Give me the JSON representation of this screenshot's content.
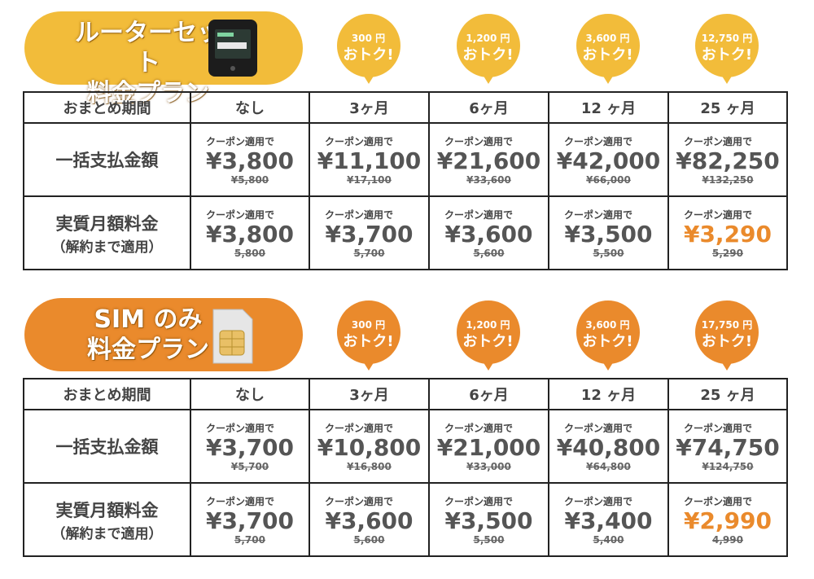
{
  "sections": [
    {
      "title": [
        "ルーターセット",
        "料金プラン"
      ],
      "color": "#f2bc3a",
      "badges": [
        {
          "amount": "300 円",
          "label": "おトク!"
        },
        {
          "amount": "1,200 円",
          "label": "おトク!"
        },
        {
          "amount": "3,600 円",
          "label": "おトク!"
        },
        {
          "amount": "12,750 円",
          "label": "おトク!"
        }
      ],
      "table": {
        "header": [
          "おまとめ期間",
          "なし",
          "3ヶ月",
          "6ヶ月",
          "12 ヶ月",
          "25 ヶ月"
        ],
        "rows": [
          {
            "label": "一括支払金額",
            "cells": [
              {
                "note": "クーポン適用で",
                "price": "¥3,800",
                "original": "¥5,800"
              },
              {
                "note": "クーポン適用で",
                "price": "¥11,100",
                "original": "¥17,100"
              },
              {
                "note": "クーポン適用で",
                "price": "¥21,600",
                "original": "¥33,600"
              },
              {
                "note": "クーポン適用で",
                "price": "¥42,000",
                "original": "¥66,000"
              },
              {
                "note": "クーポン適用で",
                "price": "¥82,250",
                "original": "¥132,250"
              }
            ]
          },
          {
            "label": "実質月額料金",
            "sublabel": "（解約まで適用）",
            "cells": [
              {
                "note": "クーポン適用で",
                "price": "¥3,800",
                "original": "5,800"
              },
              {
                "note": "クーポン適用で",
                "price": "¥3,700",
                "original": "5,700"
              },
              {
                "note": "クーポン適用で",
                "price": "¥3,600",
                "original": "5,600"
              },
              {
                "note": "クーポン適用で",
                "price": "¥3,500",
                "original": "5,500"
              },
              {
                "note": "クーポン適用で",
                "price": "¥3,290",
                "original": "5,290",
                "highlight": true
              }
            ]
          }
        ]
      }
    },
    {
      "title": [
        "SIM のみ",
        "料金プラン"
      ],
      "color": "#ea8a2c",
      "badges": [
        {
          "amount": "300 円",
          "label": "おトク!"
        },
        {
          "amount": "1,200 円",
          "label": "おトク!"
        },
        {
          "amount": "3,600 円",
          "label": "おトク!"
        },
        {
          "amount": "17,750 円",
          "label": "おトク!"
        }
      ],
      "table": {
        "header": [
          "おまとめ期間",
          "なし",
          "3ヶ月",
          "6ヶ月",
          "12 ヶ月",
          "25 ヶ月"
        ],
        "rows": [
          {
            "label": "一括支払金額",
            "cells": [
              {
                "note": "クーポン適用で",
                "price": "¥3,700",
                "original": "¥5,700"
              },
              {
                "note": "クーポン適用で",
                "price": "¥10,800",
                "original": "¥16,800"
              },
              {
                "note": "クーポン適用で",
                "price": "¥21,000",
                "original": "¥33,000"
              },
              {
                "note": "クーポン適用で",
                "price": "¥40,800",
                "original": "¥64,800"
              },
              {
                "note": "クーポン適用で",
                "price": "¥74,750",
                "original": "¥124,750"
              }
            ]
          },
          {
            "label": "実質月額料金",
            "sublabel": "（解約まで適用）",
            "cells": [
              {
                "note": "クーポン適用で",
                "price": "¥3,700",
                "original": "5,700"
              },
              {
                "note": "クーポン適用で",
                "price": "¥3,600",
                "original": "5,600"
              },
              {
                "note": "クーポン適用で",
                "price": "¥3,500",
                "original": "5,500"
              },
              {
                "note": "クーポン適用で",
                "price": "¥3,400",
                "original": "5,400"
              },
              {
                "note": "クーポン適用で",
                "price": "¥2,990",
                "original": "4,990",
                "highlight": true
              }
            ]
          }
        ]
      }
    }
  ]
}
